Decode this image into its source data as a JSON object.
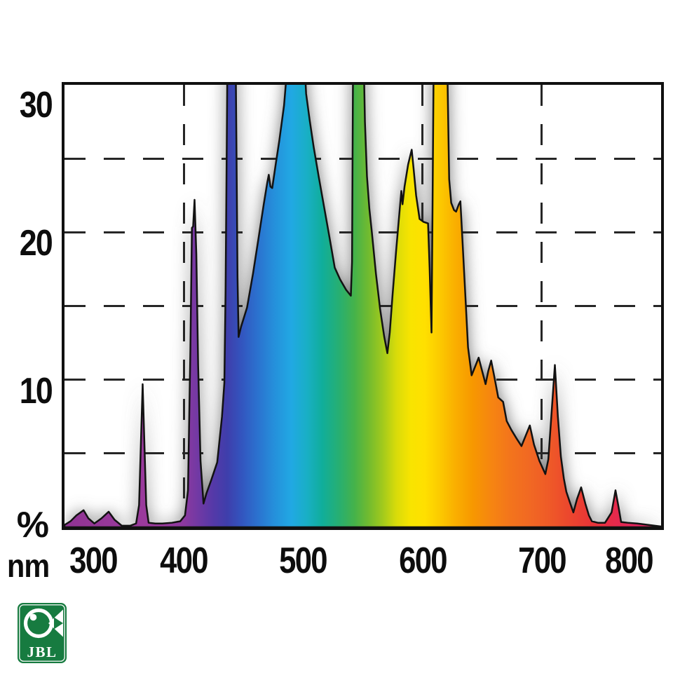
{
  "chart_data": {
    "type": "area",
    "xlabel": "nm",
    "ylabel": "%",
    "xlim": [
      300,
      800
    ],
    "ylim": [
      0,
      30
    ],
    "grid": "dashed",
    "legend": "none",
    "peaks_clipped_at_top": true,
    "x_ticks": [
      {
        "label": "300",
        "nm": 300
      },
      {
        "label": "400",
        "nm": 400
      },
      {
        "label": "500",
        "nm": 500
      },
      {
        "label": "600",
        "nm": 600
      },
      {
        "label": "700",
        "nm": 700
      },
      {
        "label": "800",
        "nm": 800
      }
    ],
    "y_ticks": [
      {
        "label": "30",
        "pct": 30
      },
      {
        "label": "20",
        "pct": 20
      },
      {
        "label": "10",
        "pct": 10
      }
    ],
    "x_gridlines_nm": [
      400,
      500,
      600,
      700
    ],
    "y_gridlines_pct": [
      5,
      10,
      15,
      20,
      25
    ],
    "spectrum_nm_pct": [
      [
        300,
        0.15
      ],
      [
        305,
        0.4
      ],
      [
        310,
        0.8
      ],
      [
        316,
        1.15
      ],
      [
        320,
        0.6
      ],
      [
        325,
        0.25
      ],
      [
        331,
        0.6
      ],
      [
        337,
        1.05
      ],
      [
        342,
        0.5
      ],
      [
        348,
        0.1
      ],
      [
        355,
        0.1
      ],
      [
        360,
        0.25
      ],
      [
        362.5,
        1.5
      ],
      [
        365.5,
        9.7
      ],
      [
        368.5,
        1.5
      ],
      [
        370.5,
        0.3
      ],
      [
        376,
        0.25
      ],
      [
        382,
        0.25
      ],
      [
        390,
        0.3
      ],
      [
        397,
        0.4
      ],
      [
        401,
        0.8
      ],
      [
        403.5,
        2.5
      ],
      [
        405.5,
        12
      ],
      [
        406.8,
        20.3
      ],
      [
        407.8,
        20.4
      ],
      [
        409,
        22.2
      ],
      [
        410.5,
        18.5
      ],
      [
        412,
        11
      ],
      [
        414,
        4.5
      ],
      [
        416.5,
        1.6
      ],
      [
        419,
        2.3
      ],
      [
        423,
        3.2
      ],
      [
        428,
        4.4
      ],
      [
        432,
        7.5
      ],
      [
        434,
        9.8
      ],
      [
        435,
        16
      ],
      [
        436,
        26
      ],
      [
        436.6,
        32.5
      ],
      [
        443.4,
        32.5
      ],
      [
        444.2,
        25
      ],
      [
        445,
        17
      ],
      [
        445.9,
        12.9
      ],
      [
        448,
        13.6
      ],
      [
        453,
        14.9
      ],
      [
        458,
        17.2
      ],
      [
        463,
        19.8
      ],
      [
        467,
        21.9
      ],
      [
        470,
        23.4
      ],
      [
        471.2,
        23.9
      ],
      [
        472.6,
        23.1
      ],
      [
        474.1,
        23.0
      ],
      [
        477,
        24.6
      ],
      [
        480,
        26.2
      ],
      [
        484,
        28.6
      ],
      [
        488,
        32.5
      ],
      [
        500.6,
        32.5
      ],
      [
        502.5,
        29.4
      ],
      [
        505.5,
        27.6
      ],
      [
        508.8,
        25.8
      ],
      [
        513,
        23.8
      ],
      [
        517.6,
        21.7
      ],
      [
        522,
        19.7
      ],
      [
        526.5,
        17.6
      ],
      [
        531,
        16.8
      ],
      [
        536,
        16.1
      ],
      [
        540,
        15.7
      ],
      [
        541,
        18
      ],
      [
        541.9,
        32.5
      ],
      [
        550.6,
        32.5
      ],
      [
        551.8,
        27.5
      ],
      [
        553.5,
        23.8
      ],
      [
        555.5,
        21.6
      ],
      [
        557.6,
        20.0
      ],
      [
        561,
        17.2
      ],
      [
        564.5,
        14.8
      ],
      [
        568,
        12.9
      ],
      [
        570.6,
        11.8
      ],
      [
        572.6,
        13.2
      ],
      [
        575,
        15.8
      ],
      [
        578,
        18.8
      ],
      [
        581,
        21.6
      ],
      [
        582.3,
        22.8
      ],
      [
        583.3,
        21.9
      ],
      [
        585,
        23.1
      ],
      [
        588,
        24.6
      ],
      [
        591,
        25.6
      ],
      [
        592.6,
        24.3
      ],
      [
        594.7,
        22.5
      ],
      [
        597.6,
        20.9
      ],
      [
        601,
        20.7
      ],
      [
        604.7,
        20.6
      ],
      [
        606,
        17.6
      ],
      [
        607.6,
        13.2
      ],
      [
        608.3,
        20
      ],
      [
        609.5,
        32.5
      ],
      [
        620.6,
        32.5
      ],
      [
        621.8,
        26.5
      ],
      [
        622.4,
        23.6
      ],
      [
        624.1,
        22.0
      ],
      [
        626.5,
        21.5
      ],
      [
        628.2,
        21.4
      ],
      [
        630.5,
        21.9
      ],
      [
        631.8,
        22.1
      ],
      [
        633.5,
        19.5
      ],
      [
        635.9,
        15.8
      ],
      [
        638.2,
        12.2
      ],
      [
        641.2,
        10.3
      ],
      [
        644.2,
        10.9
      ],
      [
        647.1,
        11.5
      ],
      [
        650,
        10.6
      ],
      [
        652.9,
        9.7
      ],
      [
        655.2,
        10.6
      ],
      [
        657.6,
        11.3
      ],
      [
        660.5,
        10.1
      ],
      [
        663.5,
        8.8
      ],
      [
        667.6,
        8.5
      ],
      [
        670.6,
        7.2
      ],
      [
        674.5,
        6.6
      ],
      [
        679,
        6.0
      ],
      [
        683,
        5.5
      ],
      [
        686.5,
        6.2
      ],
      [
        690,
        6.9
      ],
      [
        693.5,
        5.6
      ],
      [
        698,
        4.5
      ],
      [
        703,
        3.6
      ],
      [
        705.5,
        4.6
      ],
      [
        708,
        7.5
      ],
      [
        711,
        11.0
      ],
      [
        713.5,
        7.5
      ],
      [
        716,
        4.8
      ],
      [
        718.5,
        3.3
      ],
      [
        720.6,
        2.4
      ],
      [
        723.5,
        1.7
      ],
      [
        726.5,
        1.0
      ],
      [
        729.5,
        1.9
      ],
      [
        733,
        2.7
      ],
      [
        736.5,
        1.6
      ],
      [
        739.5,
        0.8
      ],
      [
        742,
        0.4
      ],
      [
        747,
        0.3
      ],
      [
        753,
        0.3
      ],
      [
        758.5,
        1.0
      ],
      [
        761.8,
        2.5
      ],
      [
        764.5,
        1.3
      ],
      [
        766.5,
        0.35
      ],
      [
        772,
        0.3
      ],
      [
        780,
        0.25
      ],
      [
        790,
        0.15
      ],
      [
        800,
        0.05
      ]
    ],
    "gradient_stops_nm_color": [
      [
        300,
        "#8F3392"
      ],
      [
        345,
        "#98399B"
      ],
      [
        382,
        "#9B3A9D"
      ],
      [
        400,
        "#8C399F"
      ],
      [
        412,
        "#7139A4"
      ],
      [
        424,
        "#5639A8"
      ],
      [
        436,
        "#3F3EAB"
      ],
      [
        448,
        "#3354BE"
      ],
      [
        462,
        "#2B72CF"
      ],
      [
        476,
        "#2590DB"
      ],
      [
        490,
        "#21A8E3"
      ],
      [
        503,
        "#19AFC6"
      ],
      [
        516,
        "#10AE9B"
      ],
      [
        530,
        "#27AF72"
      ],
      [
        543,
        "#45B24A"
      ],
      [
        555,
        "#72BB2F"
      ],
      [
        567,
        "#A3CA1C"
      ],
      [
        578,
        "#D8DB0A"
      ],
      [
        590,
        "#F8E400"
      ],
      [
        602,
        "#FFE000"
      ],
      [
        614,
        "#FCCB00"
      ],
      [
        627,
        "#FAB000"
      ],
      [
        642,
        "#F79800"
      ],
      [
        658,
        "#F68511"
      ],
      [
        674,
        "#F3741C"
      ],
      [
        690,
        "#F16823"
      ],
      [
        705,
        "#EF5B27"
      ],
      [
        722,
        "#EC482D"
      ],
      [
        740,
        "#E93636"
      ],
      [
        758,
        "#E62B48"
      ],
      [
        775,
        "#E3255A"
      ],
      [
        800,
        "#DF2069"
      ]
    ]
  },
  "branding": {
    "logo_text": "JBL"
  },
  "colors": {
    "background": "#ffffff",
    "frame": "#101010",
    "curve_outline": "#121212",
    "gridline": "#262626",
    "shadow": "#6F6F6F",
    "tick_label": "#0d0d0d",
    "logo_green": "#177B40",
    "logo_white": "#ffffff"
  }
}
